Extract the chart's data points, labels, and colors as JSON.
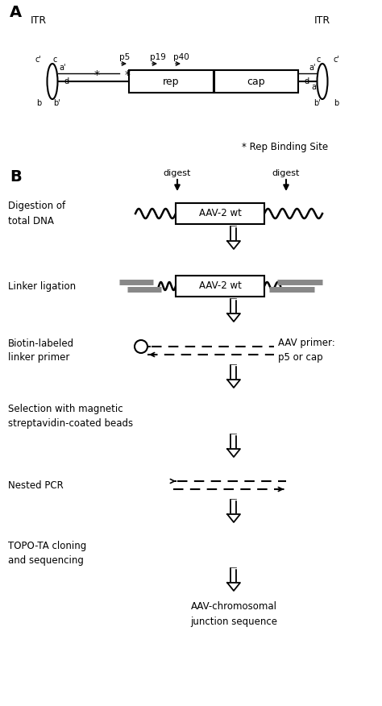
{
  "fig_width": 4.74,
  "fig_height": 8.76,
  "dpi": 100,
  "bg": "#ffffff",
  "A_label": "A",
  "B_label": "B",
  "ITR_left": "ITR",
  "ITR_right": "ITR",
  "rep_label": "rep",
  "cap_label": "cap",
  "promoters": [
    "p5",
    "p19",
    "p40"
  ],
  "rbs_note": "* Rep Binding Site",
  "digest_label": "digest",
  "aav_label": "AAV-2 wt",
  "step_labels": [
    "Digestion of\ntotal DNA",
    "Linker ligation",
    "Biotin-labeled\nlinker primer",
    "Selection with magnetic\nstreptavidin-coated beads",
    "Nested PCR",
    "TOPO-TA cloning\nand sequencing"
  ],
  "aav_primer_label": "AAV primer:\np5 or cap",
  "final_label": "AAV-chromosomal\njunction sequence"
}
